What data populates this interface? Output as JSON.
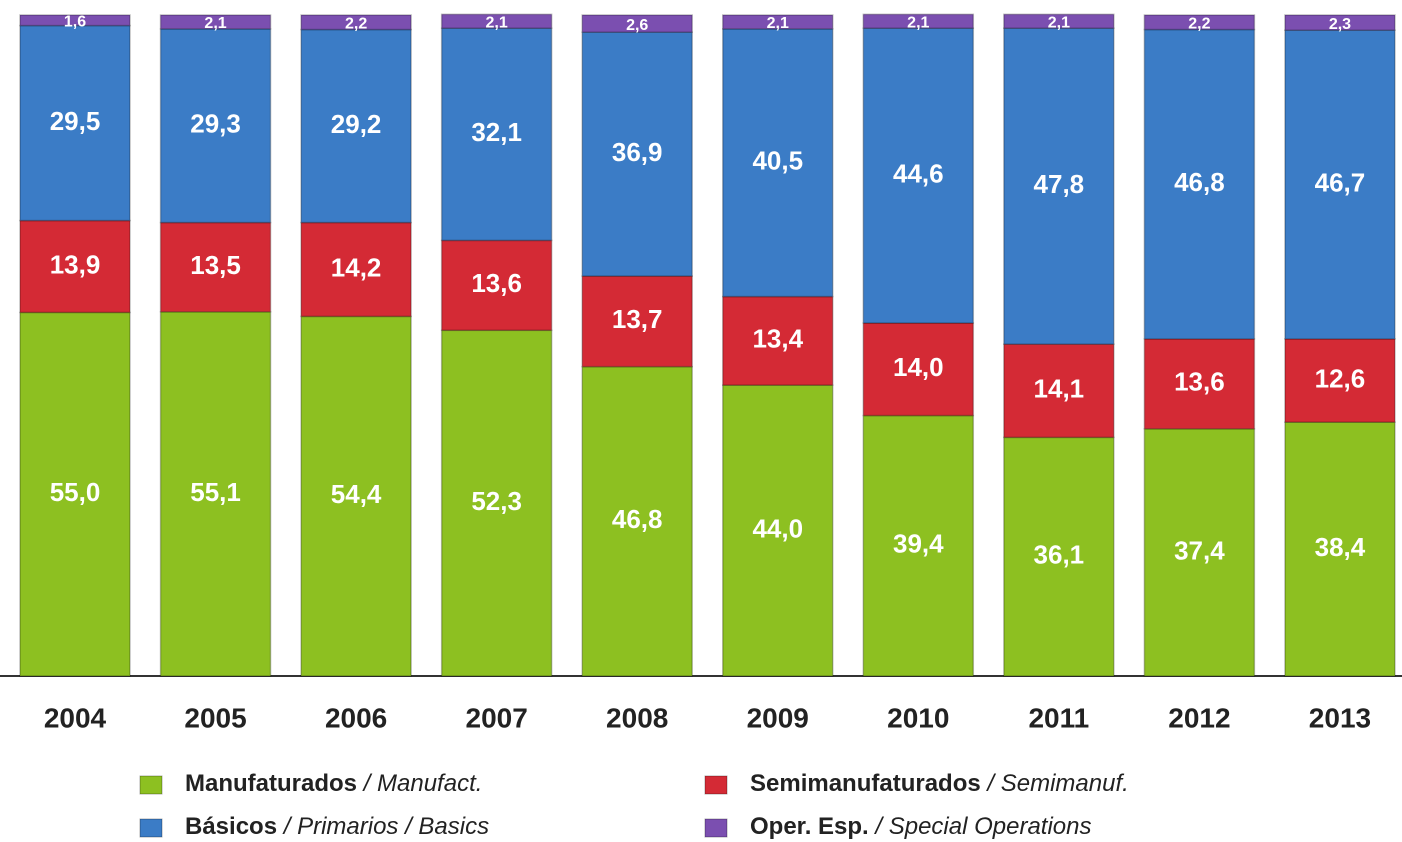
{
  "chart_data": {
    "type": "stacked_bar",
    "categories": [
      "2004",
      "2005",
      "2006",
      "2007",
      "2008",
      "2009",
      "2010",
      "2011",
      "2012",
      "2013"
    ],
    "ylim": [
      0,
      100
    ],
    "series": [
      {
        "name": "Manufaturados / Manufact.",
        "color": "#8dc021",
        "values": [
          55.0,
          55.1,
          54.4,
          52.3,
          46.8,
          44.0,
          39.4,
          36.1,
          37.4,
          38.4
        ],
        "value_labels": [
          "55,0",
          "55,1",
          "54,4",
          "52,3",
          "46,8",
          "44,0",
          "39,4",
          "36,1",
          "37,4",
          "38,4"
        ]
      },
      {
        "name": "Semimanufaturados / Semimanuf.",
        "color": "#d42a35",
        "values": [
          13.9,
          13.5,
          14.2,
          13.6,
          13.7,
          13.4,
          14.0,
          14.1,
          13.6,
          12.6
        ],
        "value_labels": [
          "13,9",
          "13,5",
          "14,2",
          "13,6",
          "13,7",
          "13,4",
          "14,0",
          "14,1",
          "13,6",
          "12,6"
        ]
      },
      {
        "name": "Básicos / Primarios / Basics",
        "color": "#3b7cc6",
        "values": [
          29.5,
          29.3,
          29.2,
          32.1,
          36.9,
          40.5,
          44.6,
          47.8,
          46.8,
          46.7
        ],
        "value_labels": [
          "29,5",
          "29,3",
          "29,2",
          "32,1",
          "36,9",
          "40,5",
          "44,6",
          "47,8",
          "46,8",
          "46,7"
        ]
      },
      {
        "name": "Oper. Esp. / Special Operations",
        "color": "#7b4fb0",
        "values": [
          1.6,
          2.1,
          2.2,
          2.1,
          2.6,
          2.1,
          2.1,
          2.1,
          2.2,
          2.3
        ],
        "value_labels": [
          "1,6",
          "2,1",
          "2,2",
          "2,1",
          "2,6",
          "2,1",
          "2,1",
          "2,1",
          "2,2",
          "2,3"
        ]
      }
    ]
  }
}
